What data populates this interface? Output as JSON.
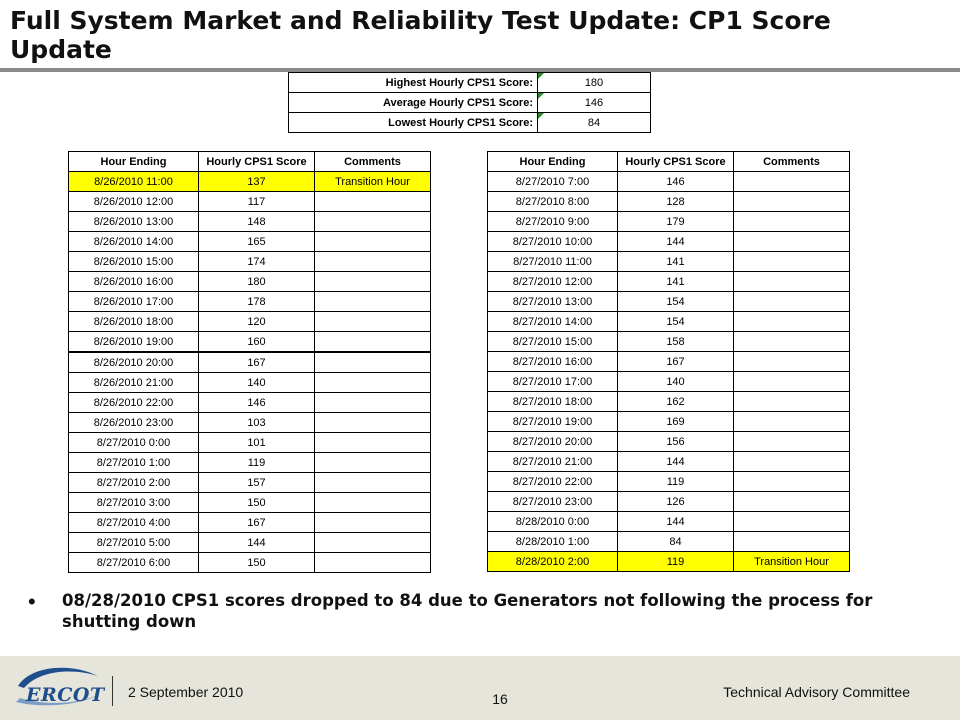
{
  "title": "Full System Market and Reliability Test Update: CP1 Score Update",
  "summary": [
    {
      "label": "Highest Hourly CPS1 Score:",
      "value": "180"
    },
    {
      "label": "Average Hourly CPS1 Score:",
      "value": "146"
    },
    {
      "label": "Lowest Hourly CPS1 Score:",
      "value": "84"
    }
  ],
  "columns": [
    "Hour Ending",
    "Hourly CPS1 Score",
    "Comments"
  ],
  "left_table": [
    {
      "hour": "8/26/2010 11:00",
      "score": "137",
      "comment": "Transition Hour"
    },
    {
      "hour": "8/26/2010 12:00",
      "score": "117",
      "comment": ""
    },
    {
      "hour": "8/26/2010 13:00",
      "score": "148",
      "comment": ""
    },
    {
      "hour": "8/26/2010 14:00",
      "score": "165",
      "comment": ""
    },
    {
      "hour": "8/26/2010 15:00",
      "score": "174",
      "comment": ""
    },
    {
      "hour": "8/26/2010 16:00",
      "score": "180",
      "comment": ""
    },
    {
      "hour": "8/26/2010 17:00",
      "score": "178",
      "comment": ""
    },
    {
      "hour": "8/26/2010 18:00",
      "score": "120",
      "comment": ""
    },
    {
      "hour": "8/26/2010 19:00",
      "score": "160",
      "comment": ""
    },
    {
      "hour": "8/26/2010 20:00",
      "score": "167",
      "comment": ""
    },
    {
      "hour": "8/26/2010 21:00",
      "score": "140",
      "comment": ""
    },
    {
      "hour": "8/26/2010 22:00",
      "score": "146",
      "comment": ""
    },
    {
      "hour": "8/26/2010 23:00",
      "score": "103",
      "comment": ""
    },
    {
      "hour": "8/27/2010 0:00",
      "score": "101",
      "comment": ""
    },
    {
      "hour": "8/27/2010 1:00",
      "score": "119",
      "comment": ""
    },
    {
      "hour": "8/27/2010 2:00",
      "score": "157",
      "comment": ""
    },
    {
      "hour": "8/27/2010 3:00",
      "score": "150",
      "comment": ""
    },
    {
      "hour": "8/27/2010 4:00",
      "score": "167",
      "comment": ""
    },
    {
      "hour": "8/27/2010 5:00",
      "score": "144",
      "comment": ""
    },
    {
      "hour": "8/27/2010 6:00",
      "score": "150",
      "comment": ""
    }
  ],
  "right_table": [
    {
      "hour": "8/27/2010 7:00",
      "score": "146",
      "comment": ""
    },
    {
      "hour": "8/27/2010 8:00",
      "score": "128",
      "comment": ""
    },
    {
      "hour": "8/27/2010 9:00",
      "score": "179",
      "comment": ""
    },
    {
      "hour": "8/27/2010 10:00",
      "score": "144",
      "comment": ""
    },
    {
      "hour": "8/27/2010 11:00",
      "score": "141",
      "comment": ""
    },
    {
      "hour": "8/27/2010 12:00",
      "score": "141",
      "comment": ""
    },
    {
      "hour": "8/27/2010 13:00",
      "score": "154",
      "comment": ""
    },
    {
      "hour": "8/27/2010 14:00",
      "score": "154",
      "comment": ""
    },
    {
      "hour": "8/27/2010 15:00",
      "score": "158",
      "comment": ""
    },
    {
      "hour": "8/27/2010 16:00",
      "score": "167",
      "comment": ""
    },
    {
      "hour": "8/27/2010 17:00",
      "score": "140",
      "comment": ""
    },
    {
      "hour": "8/27/2010 18:00",
      "score": "162",
      "comment": ""
    },
    {
      "hour": "8/27/2010 19:00",
      "score": "169",
      "comment": ""
    },
    {
      "hour": "8/27/2010 20:00",
      "score": "156",
      "comment": ""
    },
    {
      "hour": "8/27/2010 21:00",
      "score": "144",
      "comment": ""
    },
    {
      "hour": "8/27/2010 22:00",
      "score": "119",
      "comment": ""
    },
    {
      "hour": "8/27/2010 23:00",
      "score": "126",
      "comment": ""
    },
    {
      "hour": "8/28/2010 0:00",
      "score": "144",
      "comment": ""
    },
    {
      "hour": "8/28/2010 1:00",
      "score": "84",
      "comment": ""
    },
    {
      "hour": "8/28/2010 2:00",
      "score": "119",
      "comment": "Transition Hour"
    }
  ],
  "highlight_color": "#ffff00",
  "bullet": "08/28/2010 CPS1 scores dropped to 84 due to Generators not following the process for shutting down",
  "footer": {
    "logo_text": "ERCOT",
    "date": "2 September 2010",
    "page": "16",
    "committee": "Technical Advisory Committee"
  }
}
